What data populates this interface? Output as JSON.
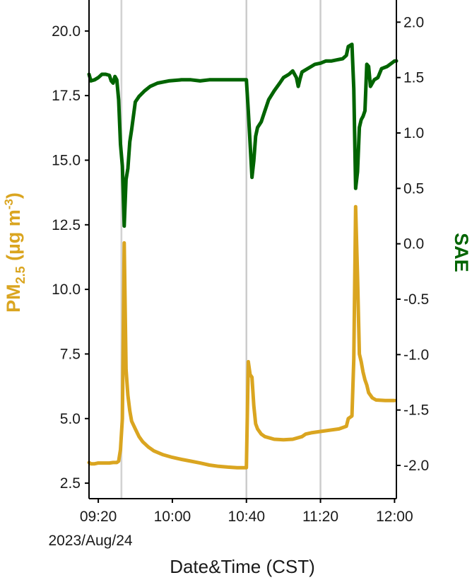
{
  "chart_data": {
    "type": "line",
    "title": "",
    "xlabel": "Date&Time (CST)",
    "x_date_label": "2023/Aug/24",
    "ylabel_left": {
      "main": "PM",
      "sub": "2.5",
      "unit_open": " (µg m",
      "unit_sup": "-3",
      "unit_close": ")"
    },
    "ylabel_right": "SAE",
    "x_range": [
      "09:15",
      "12:01"
    ],
    "x_ticks": [
      {
        "t": "09:20",
        "label": "09:20"
      },
      {
        "t": "10:00",
        "label": "10:00"
      },
      {
        "t": "10:40",
        "label": "10:40"
      },
      {
        "t": "11:20",
        "label": "11:20"
      },
      {
        "t": "12:00",
        "label": "12:00"
      }
    ],
    "y_left": {
      "range": [
        1.9,
        21.2
      ],
      "ticks": [
        "2.5",
        "5.0",
        "7.5",
        "10.0",
        "12.5",
        "15.0",
        "17.5",
        "20.0"
      ]
    },
    "y_right": {
      "range": [
        -2.3,
        2.2
      ],
      "ticks": [
        "-2.0",
        "-1.5",
        "-1.0",
        "-0.5",
        "0.0",
        "0.5",
        "1.0",
        "1.5",
        "2.0"
      ]
    },
    "vertical_lines": [
      {
        "t": "09:32",
        "shade_to": "09:33"
      },
      {
        "t": "10:40"
      },
      {
        "t": "11:20"
      }
    ],
    "colors": {
      "pm25": "#DAA520",
      "sae": "#006400",
      "vline": "#CCCCCC",
      "vshade": "#D3D3D3",
      "axis": "#000000"
    },
    "grid": false,
    "series": [
      {
        "key": "pm25",
        "axis": "left",
        "points": [
          [
            "09:15",
            3.3
          ],
          [
            "09:16",
            3.25
          ],
          [
            "09:18",
            3.25
          ],
          [
            "09:20",
            3.28
          ],
          [
            "09:22",
            3.28
          ],
          [
            "09:24",
            3.28
          ],
          [
            "09:26",
            3.28
          ],
          [
            "09:28",
            3.3
          ],
          [
            "09:30",
            3.3
          ],
          [
            "09:31",
            3.35
          ],
          [
            "09:32",
            3.8
          ],
          [
            "09:33",
            5.0
          ],
          [
            "09:34",
            11.8
          ],
          [
            "09:35",
            6.9
          ],
          [
            "09:36",
            5.9
          ],
          [
            "09:37",
            5.3
          ],
          [
            "09:38",
            4.9
          ],
          [
            "09:40",
            4.6
          ],
          [
            "09:42",
            4.3
          ],
          [
            "09:44",
            4.1
          ],
          [
            "09:47",
            3.9
          ],
          [
            "09:50",
            3.75
          ],
          [
            "09:55",
            3.6
          ],
          [
            "10:00",
            3.5
          ],
          [
            "10:05",
            3.42
          ],
          [
            "10:10",
            3.35
          ],
          [
            "10:15",
            3.28
          ],
          [
            "10:20",
            3.2
          ],
          [
            "10:25",
            3.15
          ],
          [
            "10:30",
            3.12
          ],
          [
            "10:35",
            3.1
          ],
          [
            "10:40",
            3.1
          ],
          [
            "10:41",
            7.2
          ],
          [
            "10:42",
            6.7
          ],
          [
            "10:43",
            6.6
          ],
          [
            "10:44",
            5.5
          ],
          [
            "10:45",
            4.8
          ],
          [
            "10:46",
            4.6
          ],
          [
            "10:48",
            4.4
          ],
          [
            "10:50",
            4.3
          ],
          [
            "10:55",
            4.2
          ],
          [
            "11:00",
            4.18
          ],
          [
            "11:05",
            4.2
          ],
          [
            "11:10",
            4.3
          ],
          [
            "11:12",
            4.4
          ],
          [
            "11:15",
            4.45
          ],
          [
            "11:20",
            4.5
          ],
          [
            "11:25",
            4.55
          ],
          [
            "11:30",
            4.6
          ],
          [
            "11:34",
            4.7
          ],
          [
            "11:35",
            5.0
          ],
          [
            "11:37",
            5.1
          ],
          [
            "11:38",
            7.3
          ],
          [
            "11:39",
            13.2
          ],
          [
            "11:40",
            10.5
          ],
          [
            "11:41",
            7.5
          ],
          [
            "11:42",
            7.2
          ],
          [
            "11:43",
            6.8
          ],
          [
            "11:44",
            6.5
          ],
          [
            "11:45",
            6.3
          ],
          [
            "11:46",
            6.0
          ],
          [
            "11:48",
            5.8
          ],
          [
            "11:50",
            5.72
          ],
          [
            "11:55",
            5.7
          ],
          [
            "12:00",
            5.7
          ]
        ]
      },
      {
        "key": "sae",
        "axis": "right",
        "points": [
          [
            "09:15",
            1.53
          ],
          [
            "09:16",
            1.47
          ],
          [
            "09:18",
            1.48
          ],
          [
            "09:20",
            1.5
          ],
          [
            "09:22",
            1.53
          ],
          [
            "09:24",
            1.53
          ],
          [
            "09:26",
            1.52
          ],
          [
            "09:27",
            1.47
          ],
          [
            "09:28",
            1.45
          ],
          [
            "09:29",
            1.51
          ],
          [
            "09:30",
            1.48
          ],
          [
            "09:31",
            1.3
          ],
          [
            "09:32",
            0.9
          ],
          [
            "09:33",
            0.7
          ],
          [
            "09:34",
            0.16
          ],
          [
            "09:35",
            0.58
          ],
          [
            "09:36",
            0.68
          ],
          [
            "09:37",
            0.92
          ],
          [
            "09:38",
            1.03
          ],
          [
            "09:40",
            1.28
          ],
          [
            "09:42",
            1.33
          ],
          [
            "09:45",
            1.38
          ],
          [
            "09:48",
            1.42
          ],
          [
            "09:52",
            1.45
          ],
          [
            "09:58",
            1.47
          ],
          [
            "10:05",
            1.48
          ],
          [
            "10:10",
            1.48
          ],
          [
            "10:15",
            1.47
          ],
          [
            "10:20",
            1.48
          ],
          [
            "10:25",
            1.48
          ],
          [
            "10:30",
            1.48
          ],
          [
            "10:35",
            1.48
          ],
          [
            "10:40",
            1.48
          ],
          [
            "10:41",
            1.2
          ],
          [
            "10:42",
            0.9
          ],
          [
            "10:43",
            0.6
          ],
          [
            "10:44",
            0.75
          ],
          [
            "10:45",
            0.97
          ],
          [
            "10:46",
            1.05
          ],
          [
            "10:48",
            1.1
          ],
          [
            "10:50",
            1.2
          ],
          [
            "10:52",
            1.3
          ],
          [
            "10:55",
            1.38
          ],
          [
            "10:58",
            1.45
          ],
          [
            "11:00",
            1.5
          ],
          [
            "11:03",
            1.53
          ],
          [
            "11:05",
            1.56
          ],
          [
            "11:07",
            1.5
          ],
          [
            "11:08",
            1.42
          ],
          [
            "11:09",
            1.49
          ],
          [
            "11:10",
            1.55
          ],
          [
            "11:13",
            1.58
          ],
          [
            "11:15",
            1.6
          ],
          [
            "11:17",
            1.62
          ],
          [
            "11:20",
            1.63
          ],
          [
            "11:23",
            1.65
          ],
          [
            "11:26",
            1.65
          ],
          [
            "11:29",
            1.66
          ],
          [
            "11:32",
            1.67
          ],
          [
            "11:34",
            1.7
          ],
          [
            "11:35",
            1.78
          ],
          [
            "11:37",
            1.8
          ],
          [
            "11:38",
            1.4
          ],
          [
            "11:39",
            0.5
          ],
          [
            "11:40",
            0.65
          ],
          [
            "11:41",
            1.05
          ],
          [
            "11:42",
            1.12
          ],
          [
            "11:43",
            1.15
          ],
          [
            "11:44",
            1.2
          ],
          [
            "11:45",
            1.62
          ],
          [
            "11:46",
            1.6
          ],
          [
            "11:47",
            1.42
          ],
          [
            "11:49",
            1.48
          ],
          [
            "11:51",
            1.5
          ],
          [
            "11:53",
            1.58
          ],
          [
            "11:56",
            1.6
          ],
          [
            "12:00",
            1.65
          ],
          [
            "12:01",
            1.65
          ]
        ]
      }
    ]
  }
}
